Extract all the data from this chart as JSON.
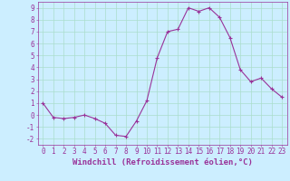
{
  "x": [
    0,
    1,
    2,
    3,
    4,
    5,
    6,
    7,
    8,
    9,
    10,
    11,
    12,
    13,
    14,
    15,
    16,
    17,
    18,
    19,
    20,
    21,
    22,
    23
  ],
  "y": [
    1.0,
    -0.2,
    -0.3,
    -0.2,
    0.0,
    -0.3,
    -0.7,
    -1.7,
    -1.8,
    -0.5,
    1.2,
    4.8,
    7.0,
    7.2,
    9.0,
    8.7,
    9.0,
    8.2,
    6.5,
    3.8,
    2.8,
    3.1,
    2.2,
    1.5
  ],
  "line_color": "#993399",
  "marker": "+",
  "marker_size": 3,
  "bg_color": "#cceeff",
  "grid_color": "#aaddcc",
  "xlabel": "Windchill (Refroidissement éolien,°C)",
  "xlim": [
    -0.5,
    23.5
  ],
  "ylim": [
    -2.5,
    9.5
  ],
  "yticks": [
    -2,
    -1,
    0,
    1,
    2,
    3,
    4,
    5,
    6,
    7,
    8,
    9
  ],
  "xticks": [
    0,
    1,
    2,
    3,
    4,
    5,
    6,
    7,
    8,
    9,
    10,
    11,
    12,
    13,
    14,
    15,
    16,
    17,
    18,
    19,
    20,
    21,
    22,
    23
  ],
  "tick_color": "#993399",
  "label_fontsize": 6.5,
  "tick_fontsize": 5.5
}
